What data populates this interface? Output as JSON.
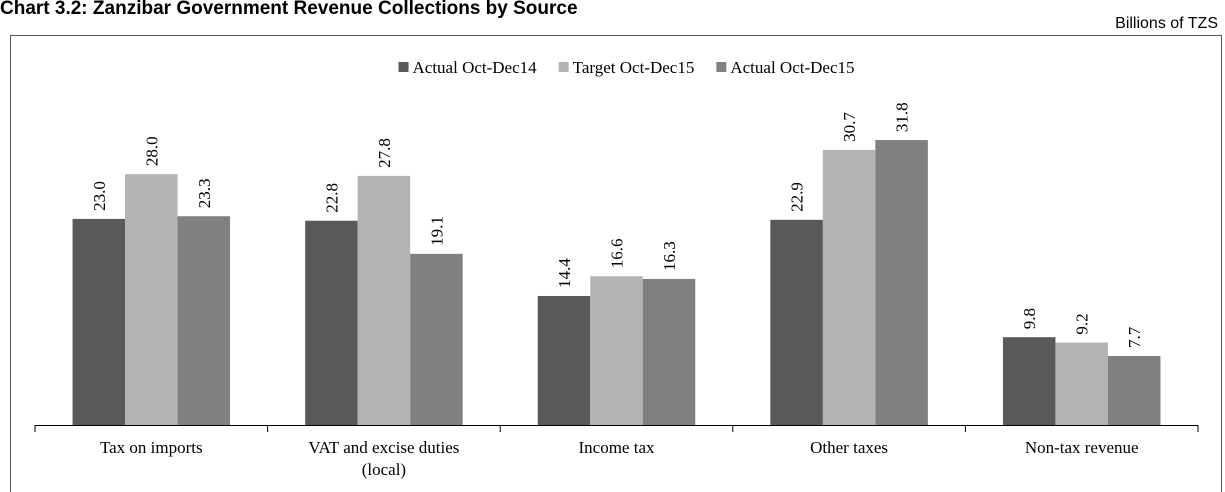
{
  "chart_data": {
    "type": "bar",
    "title": "Chart 3.2: Zanzibar Government Revenue Collections by Source",
    "subtitle": "Billions of TZS",
    "categories": [
      "Tax on imports",
      "VAT and excise duties (local)",
      "Income tax",
      "Other taxes",
      "Non-tax revenue"
    ],
    "series": [
      {
        "name": "Actual Oct-Dec14",
        "color": "#595959",
        "values": [
          23.0,
          22.8,
          14.4,
          22.9,
          9.8
        ],
        "value_labels": [
          "23.0",
          "22.8",
          "14.4",
          "22.9",
          "9.8"
        ]
      },
      {
        "name": "Target Oct-Dec15",
        "color": "#b3b3b3",
        "values": [
          28.0,
          27.8,
          16.6,
          30.7,
          9.2
        ],
        "value_labels": [
          "28.0",
          "27.8",
          "16.6",
          "30.7",
          "9.2"
        ]
      },
      {
        "name": "Actual Oct-Dec15",
        "color": "#808080",
        "values": [
          23.3,
          19.1,
          16.3,
          31.8,
          7.7
        ],
        "value_labels": [
          "23.3",
          "19.1",
          "16.3",
          "31.8",
          "7.7"
        ]
      }
    ],
    "legend": "top"
  }
}
